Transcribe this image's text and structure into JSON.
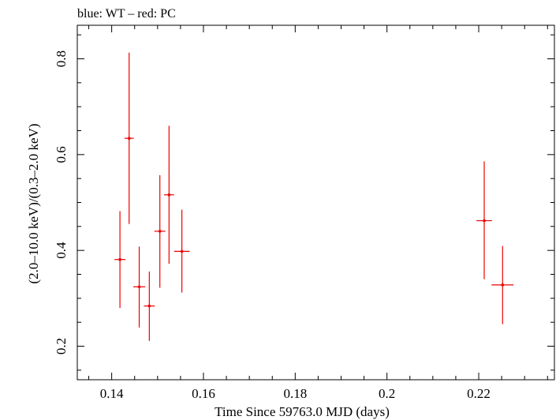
{
  "chart_data": {
    "type": "scatter",
    "title": "blue: WT – red: PC",
    "xlabel": "Time Since 59763.0 MJD (days)",
    "ylabel": "(2.0–10.0 keV)/(0.3–2.0 keV)",
    "xlim": [
      0.1325,
      0.2365
    ],
    "ylim": [
      0.13,
      0.87
    ],
    "x_ticks": [
      0.14,
      0.16,
      0.18,
      0.2,
      0.22
    ],
    "x_tick_labels": [
      "0.14",
      "0.16",
      "0.18",
      "0.2",
      "0.22"
    ],
    "y_ticks": [
      0.2,
      0.4,
      0.6,
      0.8
    ],
    "y_tick_labels": [
      "0.2",
      "0.4",
      "0.6",
      "0.8"
    ],
    "grid": false,
    "series": [
      {
        "color": "#ee0000",
        "points": [
          {
            "x": 0.1418,
            "y": 0.381,
            "xerr": 0.0012,
            "ylo": 0.28,
            "yhi": 0.482
          },
          {
            "x": 0.1438,
            "y": 0.634,
            "xerr": 0.001,
            "ylo": 0.455,
            "yhi": 0.813
          },
          {
            "x": 0.146,
            "y": 0.324,
            "xerr": 0.0013,
            "ylo": 0.239,
            "yhi": 0.408
          },
          {
            "x": 0.1482,
            "y": 0.284,
            "xerr": 0.0012,
            "ylo": 0.211,
            "yhi": 0.356
          },
          {
            "x": 0.1505,
            "y": 0.44,
            "xerr": 0.0012,
            "ylo": 0.322,
            "yhi": 0.557
          },
          {
            "x": 0.1525,
            "y": 0.516,
            "xerr": 0.0011,
            "ylo": 0.372,
            "yhi": 0.66
          },
          {
            "x": 0.1553,
            "y": 0.398,
            "xerr": 0.0017,
            "ylo": 0.312,
            "yhi": 0.485
          },
          {
            "x": 0.2212,
            "y": 0.462,
            "xerr": 0.0017,
            "ylo": 0.34,
            "yhi": 0.586
          },
          {
            "x": 0.2252,
            "y": 0.328,
            "xerr": 0.0024,
            "ylo": 0.246,
            "yhi": 0.409
          }
        ]
      }
    ]
  }
}
